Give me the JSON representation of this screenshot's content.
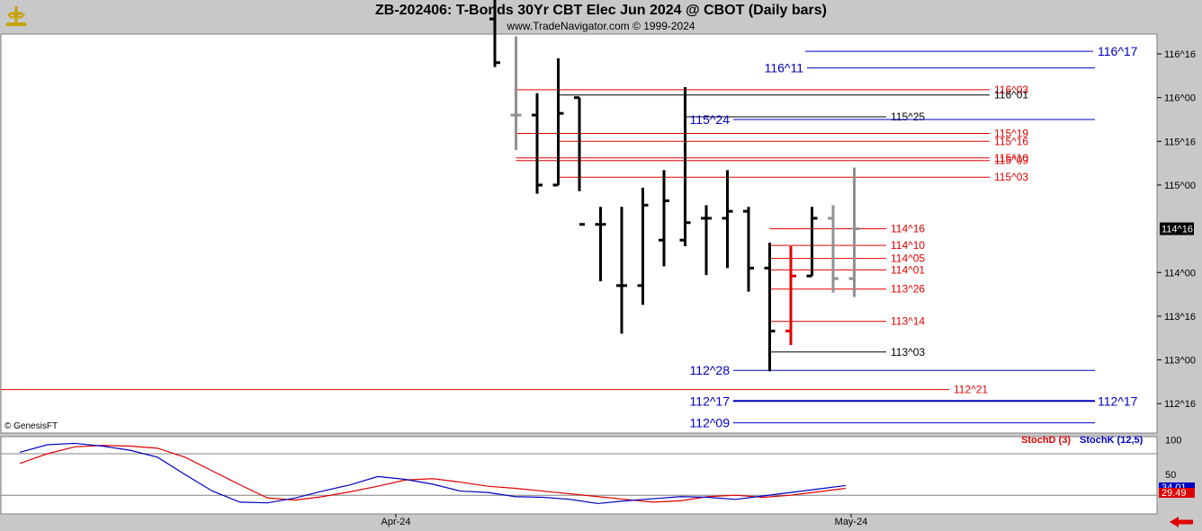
{
  "header": {
    "title": "ZB-202406:  T-Bonds 30Yr CBT Elec Jun 2024 @ CBOT  (Daily bars)",
    "subtitle": "www.TradeNavigator.com © 1999-2024"
  },
  "footer": {
    "copyright": "© GenesisFT"
  },
  "icons": {
    "logo": "trade-navigator-logo-icon",
    "back": "red-left-arrow-icon"
  },
  "colors": {
    "background": "#ffffff",
    "frame": "#c8c8c8",
    "red": "#e00000",
    "blue": "#0000c0",
    "gray": "#909090",
    "black": "#000000"
  },
  "chart_data": [
    {
      "type": "ohlc",
      "y_axis": {
        "ticks": [
          {
            "label": "116^16",
            "value": 116.5
          },
          {
            "label": "116^00",
            "value": 116.0
          },
          {
            "label": "115^16",
            "value": 115.5
          },
          {
            "label": "115^00",
            "value": 115.0
          },
          {
            "label": "114^00",
            "value": 114.0
          },
          {
            "label": "113^16",
            "value": 113.5
          },
          {
            "label": "113^00",
            "value": 113.0
          },
          {
            "label": "112^16",
            "value": 112.5
          }
        ],
        "current_price_label": "114^16",
        "current_price": 114.5
      },
      "x_axis": {
        "tick_labels": [
          "Apr-24",
          "May-24"
        ]
      },
      "bars": [
        {
          "o": 116.9,
          "h": 117.2,
          "l": 116.35,
          "c": 116.4,
          "color": "black"
        },
        {
          "o": 115.8,
          "h": 116.7,
          "l": 115.4,
          "c": 115.8,
          "color": "gray"
        },
        {
          "o": 115.8,
          "h": 116.05,
          "l": 114.9,
          "c": 115.0,
          "color": "black"
        },
        {
          "o": 115.0,
          "h": 116.45,
          "l": 115.0,
          "c": 115.82,
          "color": "black"
        },
        {
          "o": 116.0,
          "h": 116.0,
          "l": 114.93,
          "c": 114.55,
          "color": "black"
        },
        {
          "o": 114.55,
          "h": 114.75,
          "l": 113.9,
          "c": 114.55,
          "color": "black"
        },
        {
          "o": 113.85,
          "h": 114.75,
          "l": 113.3,
          "c": 113.85,
          "color": "black"
        },
        {
          "o": 113.85,
          "h": 114.97,
          "l": 113.63,
          "c": 114.77,
          "color": "black"
        },
        {
          "o": 114.37,
          "h": 115.17,
          "l": 114.07,
          "c": 114.82,
          "color": "black"
        },
        {
          "o": 114.37,
          "h": 116.12,
          "l": 114.3,
          "c": 114.57,
          "color": "black"
        },
        {
          "o": 114.62,
          "h": 114.77,
          "l": 113.97,
          "c": 114.62,
          "color": "black"
        },
        {
          "o": 114.62,
          "h": 115.17,
          "l": 114.05,
          "c": 114.7,
          "color": "black"
        },
        {
          "o": 114.7,
          "h": 114.75,
          "l": 113.78,
          "c": 114.05,
          "color": "black"
        },
        {
          "o": 114.05,
          "h": 114.34,
          "l": 112.87,
          "c": 113.33,
          "color": "black"
        },
        {
          "o": 113.33,
          "h": 114.3,
          "l": 113.17,
          "c": 113.96,
          "color": "red"
        },
        {
          "o": 113.96,
          "h": 114.75,
          "l": 113.96,
          "c": 114.62,
          "color": "black"
        },
        {
          "o": 114.62,
          "h": 114.77,
          "l": 113.77,
          "c": 113.93,
          "color": "gray"
        },
        {
          "o": 113.93,
          "h": 115.2,
          "l": 113.72,
          "c": 114.5,
          "color": "gray"
        }
      ],
      "levels": [
        {
          "label": "116^17",
          "value": 116.53,
          "color": "blue",
          "x_from_bar": 15.2,
          "label_side": "right"
        },
        {
          "label": "116^11",
          "value": 116.34,
          "color": "blue",
          "x_from_bar": 13.5,
          "label_side": "left"
        },
        {
          "label": "116^03",
          "value": 116.09,
          "color": "red",
          "x_from_bar": 1,
          "label_side": "right"
        },
        {
          "label": "116^01",
          "value": 116.03,
          "color": "black",
          "x_from_bar": 3,
          "label_side": "right"
        },
        {
          "label": "115^25",
          "value": 115.78,
          "color": "black",
          "x_from_bar": 9,
          "label_side": "right"
        },
        {
          "label": "115^24",
          "value": 115.75,
          "color": "blue",
          "x_from_bar": 10.5,
          "label_side": "left"
        },
        {
          "label": "115^19",
          "value": 115.59,
          "color": "red",
          "x_from_bar": 1,
          "label_side": "right"
        },
        {
          "label": "115^16",
          "value": 115.5,
          "color": "red",
          "x_from_bar": 3,
          "label_side": "right"
        },
        {
          "label": "115^10",
          "value": 115.31,
          "color": "red",
          "x_from_bar": 1,
          "label_side": "right"
        },
        {
          "label": "115^09",
          "value": 115.28,
          "color": "red",
          "x_from_bar": 1,
          "label_side": "right"
        },
        {
          "label": "115^03",
          "value": 115.09,
          "color": "red",
          "x_from_bar": 3,
          "label_side": "right"
        },
        {
          "label": "114^16",
          "value": 114.5,
          "color": "red",
          "x_from_bar": 13,
          "label_side": "right"
        },
        {
          "label": "114^10",
          "value": 114.31,
          "color": "red",
          "x_from_bar": 13,
          "label_side": "right"
        },
        {
          "label": "114^05",
          "value": 114.16,
          "color": "red",
          "x_from_bar": 13,
          "label_side": "right"
        },
        {
          "label": "114^01",
          "value": 114.03,
          "color": "red",
          "x_from_bar": 13,
          "label_side": "right"
        },
        {
          "label": "113^26",
          "value": 113.81,
          "color": "red",
          "x_from_bar": 13,
          "label_side": "right"
        },
        {
          "label": "113^14",
          "value": 113.44,
          "color": "red",
          "x_from_bar": 13,
          "label_side": "right"
        },
        {
          "label": "113^03",
          "value": 113.09,
          "color": "black",
          "x_from_bar": 13,
          "label_side": "right"
        },
        {
          "label": "112^28",
          "value": 112.88,
          "color": "blue",
          "x_from_bar": 11.8,
          "label_side": "left"
        },
        {
          "label": "112^21",
          "value": 112.66,
          "color": "red",
          "x_from_bar": -99,
          "label_side": "right"
        },
        {
          "label": "112^17",
          "value": 112.53,
          "color": "blue",
          "x_from_bar": 11.8,
          "label_side": "both"
        },
        {
          "label": "112^09",
          "value": 112.28,
          "color": "blue",
          "x_from_bar": 11.8,
          "label_side": "left"
        }
      ]
    },
    {
      "type": "line",
      "legend": [
        "StochD (3)",
        "StochK (12,5)"
      ],
      "y_axis": {
        "ticks": [
          {
            "label": "100",
            "value": 100
          },
          {
            "label": "50",
            "value": 50
          }
        ]
      },
      "reference_lines": [
        80,
        20
      ],
      "last_values": {
        "StochK": "34.01",
        "StochD": "29.49"
      },
      "series": [
        {
          "name": "StochD (3)",
          "color": "red",
          "values": [
            66,
            80,
            90,
            92,
            91,
            88,
            75,
            55,
            35,
            16,
            13,
            18,
            25,
            33,
            42,
            44,
            39,
            33,
            30,
            26,
            22,
            18,
            14,
            10,
            12,
            18,
            20,
            17,
            20,
            25,
            30
          ]
        },
        {
          "name": "StochK (12,5)",
          "color": "blue",
          "values": [
            82,
            93,
            95,
            91,
            85,
            75,
            50,
            26,
            10,
            9,
            16,
            26,
            35,
            47,
            43,
            36,
            26,
            24,
            18,
            17,
            14,
            8,
            12,
            15,
            18,
            17,
            14,
            19,
            24,
            29,
            34
          ]
        }
      ]
    }
  ]
}
